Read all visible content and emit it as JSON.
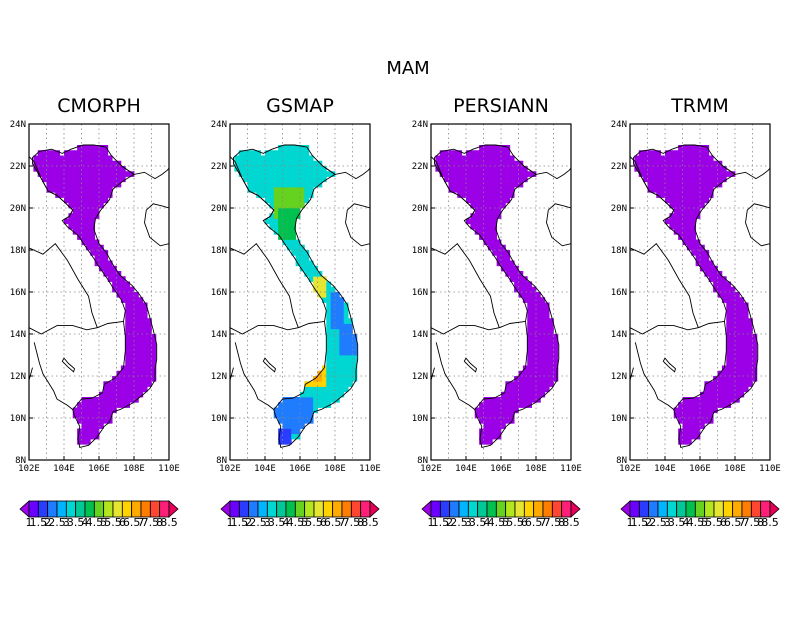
{
  "season_title": "MAM",
  "chart_data": {
    "type": "heatmap",
    "title": "MAM",
    "xlim_lon": [
      102,
      110
    ],
    "ylim_lat": [
      8,
      24
    ],
    "x_ticks": [
      "102E",
      "104E",
      "106E",
      "108E",
      "110E"
    ],
    "y_ticks": [
      "8N",
      "10N",
      "12N",
      "14N",
      "16N",
      "18N",
      "20N",
      "22N",
      "24N"
    ],
    "grid": true,
    "colorbar": {
      "levels": [
        1,
        1.5,
        2,
        2.5,
        3,
        3.5,
        4,
        4.5,
        5,
        5.5,
        6,
        6.5,
        7,
        7.5,
        8,
        8.5
      ],
      "labels": [
        "1",
        "1.5",
        "2",
        "2.5",
        "3",
        "3.5",
        "4",
        "4.5",
        "5",
        "5.5",
        "6",
        "6.5",
        "7",
        "7.5",
        "8",
        "8.5"
      ],
      "colors": [
        "#9b00e6",
        "#6a00ff",
        "#2a3cff",
        "#1f7cff",
        "#00b4ff",
        "#00d7d2",
        "#00c896",
        "#00c050",
        "#64d21e",
        "#b4e61e",
        "#e6e632",
        "#ffd200",
        "#ffaa00",
        "#ff7d00",
        "#ff4632",
        "#ff1e78",
        "#e6005a"
      ],
      "extend": "both"
    },
    "panels": [
      {
        "title": "CMORPH",
        "uniform_value": 0.8
      },
      {
        "title": "GSMAP",
        "base_value": 3.4,
        "regions": [
          {
            "lat": [
              20.8,
              22.6
            ],
            "lon": [
              103.2,
              106.0
            ],
            "value": 3.3
          },
          {
            "lat": [
              19.5,
              21.0
            ],
            "lon": [
              104.6,
              106.2
            ],
            "value": 4.5
          },
          {
            "lat": [
              18.5,
              20.0
            ],
            "lon": [
              104.8,
              106.0
            ],
            "value": 4.0
          },
          {
            "lat": [
              15.8,
              16.7
            ],
            "lon": [
              106.8,
              107.6
            ],
            "value": 5.5
          },
          {
            "lat": [
              14.3,
              16.0
            ],
            "lon": [
              107.8,
              108.6
            ],
            "value": 2.4
          },
          {
            "lat": [
              13.0,
              14.5
            ],
            "lon": [
              108.2,
              109.2
            ],
            "value": 2.2
          },
          {
            "lat": [
              11.6,
              12.8
            ],
            "lon": [
              106.0,
              107.6
            ],
            "value": 6.0
          },
          {
            "lat": [
              11.8,
              12.5
            ],
            "lon": [
              106.4,
              107.2
            ],
            "value": 6.5
          },
          {
            "lat": [
              9.2,
              11.0
            ],
            "lon": [
              104.4,
              106.8
            ],
            "value": 2.1
          },
          {
            "lat": [
              8.5,
              9.6
            ],
            "lon": [
              104.6,
              105.4
            ],
            "value": 1.8
          }
        ]
      },
      {
        "title": "PERSIANN",
        "uniform_value": 0.8
      },
      {
        "title": "TRMM",
        "uniform_value": 0.8
      }
    ]
  }
}
